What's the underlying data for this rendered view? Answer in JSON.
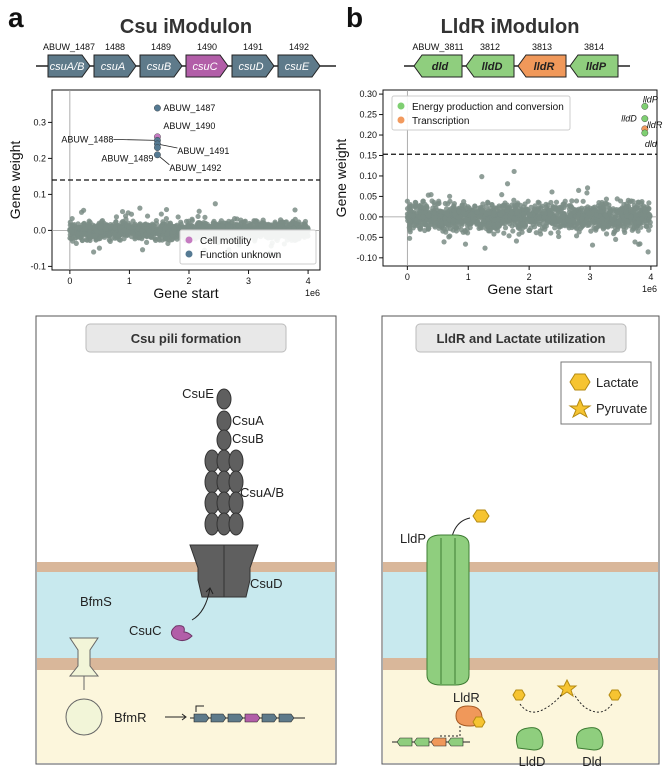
{
  "panel_a": {
    "letter": "a",
    "title": "Csu iModulon",
    "operon": [
      {
        "locus": "ABUW_1487",
        "gene": "csuA/B",
        "color": "#5e7a8a"
      },
      {
        "locus": "1488",
        "gene": "csuA",
        "color": "#5e7a8a"
      },
      {
        "locus": "1489",
        "gene": "csuB",
        "color": "#5e7a8a"
      },
      {
        "locus": "1490",
        "gene": "csuC",
        "color": "#b25ea8"
      },
      {
        "locus": "1491",
        "gene": "csuD",
        "color": "#5e7a8a"
      },
      {
        "locus": "1492",
        "gene": "csuE",
        "color": "#5e7a8a"
      }
    ],
    "labels": [
      "ABUW_1487",
      "ABUW_1490",
      "ABUW_1488",
      "ABUW_1491",
      "ABUW_1489",
      "ABUW_1492"
    ],
    "legend": [
      "Cell motility",
      "Function unknown"
    ],
    "diagram_title": "Csu pili formation",
    "proteins": [
      "CsuE",
      "CsuA",
      "CsuB",
      "CsuA/B",
      "CsuD",
      "CsuC",
      "BfmS",
      "BfmR"
    ]
  },
  "panel_b": {
    "letter": "b",
    "title": "LldR iModulon",
    "operon": [
      {
        "locus": "ABUW_3811",
        "gene": "dld",
        "color": "#8fce7e"
      },
      {
        "locus": "3812",
        "gene": "lldD",
        "color": "#8fce7e"
      },
      {
        "locus": "3813",
        "gene": "lldR",
        "color": "#f0985a"
      },
      {
        "locus": "3814",
        "gene": "lldP",
        "color": "#8fce7e"
      }
    ],
    "labels": [
      "lldP",
      "lldD",
      "lldR",
      "dld"
    ],
    "legend": [
      "Energy production and conversion",
      "Transcription"
    ],
    "diagram_title": "LldR and Lactate utilization",
    "proteins": [
      "LldP",
      "LldR",
      "LldD",
      "Dld"
    ],
    "key": [
      "Lactate",
      "Pyruvate"
    ]
  },
  "chart_data": [
    {
      "type": "scatter",
      "xlabel": "Gene start",
      "ylabel": "Gene weight",
      "x_exponent_label": "1e6",
      "xlim": [
        -0.3,
        4.2
      ],
      "ylim": [
        -0.11,
        0.39
      ],
      "xticks": [
        0,
        1,
        2,
        3,
        4
      ],
      "yticks": [
        -0.1,
        0.0,
        0.1,
        0.2,
        0.3
      ],
      "ytick_labels": [
        "-0.1",
        "0.0",
        "0.1",
        "0.2",
        "0.3"
      ],
      "threshold": 0.14,
      "background_cloud": {
        "x_range": [
          0,
          4
        ],
        "y_range": [
          -0.04,
          0.05
        ],
        "color": "#7b8d86"
      },
      "highlighted_points": [
        {
          "label": "ABUW_1487",
          "x": 1.47,
          "y": 0.34,
          "category": "Function unknown"
        },
        {
          "label": "ABUW_1490",
          "x": 1.47,
          "y": 0.26,
          "category": "Cell motility"
        },
        {
          "label": "ABUW_1488",
          "x": 1.47,
          "y": 0.25,
          "category": "Function unknown"
        },
        {
          "label": "ABUW_1491",
          "x": 1.47,
          "y": 0.24,
          "category": "Function unknown"
        },
        {
          "label": "ABUW_1489",
          "x": 1.47,
          "y": 0.23,
          "category": "Function unknown"
        },
        {
          "label": "ABUW_1492",
          "x": 1.47,
          "y": 0.21,
          "category": "Function unknown"
        }
      ],
      "legend": [
        {
          "name": "Cell motility",
          "color": "#c57bc1"
        },
        {
          "name": "Function unknown",
          "color": "#557a93"
        }
      ],
      "legend_position": "bottom-right"
    },
    {
      "type": "scatter",
      "xlabel": "Gene start",
      "ylabel": "Gene weight",
      "x_exponent_label": "1e6",
      "xlim": [
        -0.4,
        4.1
      ],
      "ylim": [
        -0.12,
        0.31
      ],
      "xticks": [
        0,
        1,
        2,
        3,
        4
      ],
      "yticks": [
        -0.1,
        -0.05,
        0.0,
        0.05,
        0.1,
        0.15,
        0.2,
        0.25,
        0.3
      ],
      "ytick_labels": [
        "-0.10",
        "-0.05",
        "0.00",
        "0.05",
        "0.10",
        "0.15",
        "0.20",
        "0.25",
        "0.30"
      ],
      "threshold": 0.153,
      "background_cloud": {
        "x_range": [
          0,
          4
        ],
        "y_range": [
          -0.06,
          0.06
        ],
        "color": "#7b8d86"
      },
      "highlighted_points": [
        {
          "label": "lldP",
          "x": 3.9,
          "y": 0.27,
          "category": "Energy production and conversion"
        },
        {
          "label": "lldD",
          "x": 3.9,
          "y": 0.24,
          "category": "Energy production and conversion"
        },
        {
          "label": "lldR",
          "x": 3.9,
          "y": 0.215,
          "category": "Transcription"
        },
        {
          "label": "dld",
          "x": 3.9,
          "y": 0.205,
          "category": "Energy production and conversion"
        }
      ],
      "legend": [
        {
          "name": "Energy production and conversion",
          "color": "#7fcf72"
        },
        {
          "name": "Transcription",
          "color": "#f29a5e"
        }
      ],
      "legend_position": "top-left"
    }
  ]
}
